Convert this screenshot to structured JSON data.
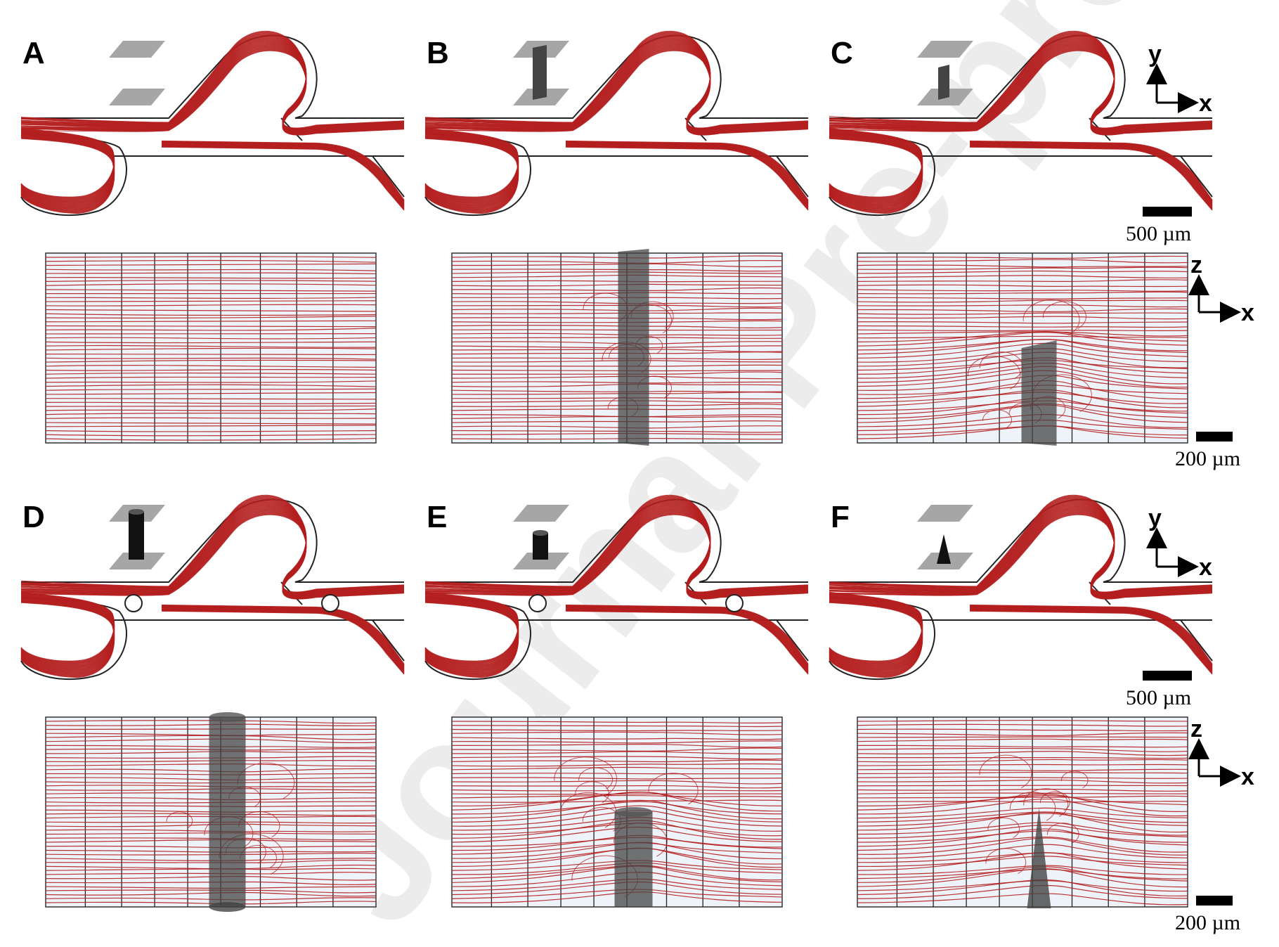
{
  "figure": {
    "panels": [
      {
        "label": "A",
        "obstacle": "none"
      },
      {
        "label": "B",
        "obstacle": "rectangular-prism-full-height"
      },
      {
        "label": "C",
        "obstacle": "rectangular-prism-half-height"
      },
      {
        "label": "D",
        "obstacle": "cylinder-full-height"
      },
      {
        "label": "E",
        "obstacle": "cylinder-half-height"
      },
      {
        "label": "F",
        "obstacle": "cone"
      }
    ],
    "axes": {
      "top_y": "y",
      "top_x": "x",
      "side_z": "z",
      "side_x": "x"
    },
    "scale_bars": {
      "top_view": "500 µm",
      "side_view": "200 µm"
    },
    "watermark": "Journal Pre-proofs",
    "colors": {
      "streamline": "#b41e1e",
      "channel_outline": "#222222",
      "obstacle": "#444444",
      "electrode": "#a6a6a6",
      "side_bg": "#eef2f9"
    }
  }
}
